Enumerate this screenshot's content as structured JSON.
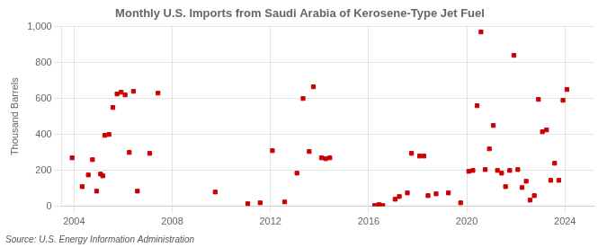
{
  "chart_data": {
    "type": "scatter",
    "title": "Monthly U.S. Imports from Saudi Arabia of Kerosene-Type Jet Fuel",
    "ylabel": "Thousand Barrels",
    "annotation": "Source: U.S. Energy Information Administration",
    "color": "#cc0000",
    "marker": "square",
    "grid": true,
    "xlim": [
      2003.5,
      2025.2
    ],
    "xticks": [
      2004,
      2008,
      2012,
      2016,
      2020,
      2024
    ],
    "ylim": [
      0,
      1000
    ],
    "yticks": [
      0,
      200,
      400,
      600,
      800,
      {
        "value": 1000,
        "label": "1,000"
      }
    ],
    "x": [
      2003.92,
      2004.33,
      2004.58,
      2004.75,
      2004.92,
      2005.08,
      2005.17,
      2005.25,
      2005.42,
      2005.58,
      2005.75,
      2005.92,
      2006.08,
      2006.25,
      2006.42,
      2006.58,
      2007.08,
      2007.42,
      2009.75,
      2011.08,
      2011.58,
      2012.08,
      2012.58,
      2013.08,
      2013.33,
      2013.58,
      2013.75,
      2014.08,
      2014.25,
      2014.42,
      2016.25,
      2016.42,
      2016.58,
      2017.08,
      2017.25,
      2017.58,
      2017.75,
      2018.08,
      2018.25,
      2018.42,
      2018.75,
      2019.25,
      2019.75,
      2020.08,
      2020.25,
      2020.42,
      2020.58,
      2020.75,
      2020.92,
      2021.08,
      2021.25,
      2021.42,
      2021.58,
      2021.75,
      2021.92,
      2022.08,
      2022.25,
      2022.42,
      2022.58,
      2022.75,
      2022.92,
      2023.08,
      2023.25,
      2023.42,
      2023.58,
      2023.75,
      2023.92,
      2024.08
    ],
    "values": [
      270,
      110,
      175,
      260,
      85,
      180,
      170,
      395,
      400,
      550,
      625,
      635,
      620,
      300,
      640,
      85,
      295,
      630,
      80,
      15,
      20,
      310,
      25,
      185,
      600,
      305,
      665,
      270,
      265,
      270,
      5,
      10,
      5,
      40,
      55,
      75,
      295,
      280,
      280,
      60,
      70,
      75,
      20,
      195,
      200,
      560,
      970,
      205,
      320,
      450,
      200,
      185,
      110,
      200,
      840,
      205,
      105,
      140,
      35,
      60,
      595,
      415,
      425,
      145,
      240,
      145,
      590,
      650
    ]
  }
}
